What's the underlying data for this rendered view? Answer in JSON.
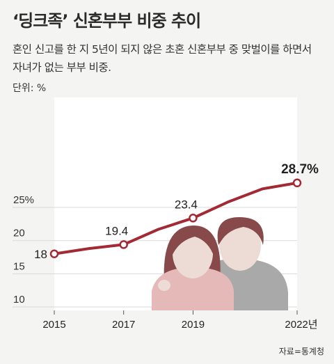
{
  "title": "‘딩크족’ 신혼부부 비중 추이",
  "subtitle": "혼인 신고를 한 지 5년이 되지 않은 초혼 신혼부부 중 맞벌이를 하면서 자녀가 없는 부부 비중.",
  "unit_label": "단위: %",
  "source": "자료=통계청",
  "colors": {
    "line": "#a32a35",
    "grid": "#d9d9d9",
    "plot_bg": "#ffffff",
    "page_bg": "#f4f4f2",
    "person_skin": "#eddcd6",
    "woman_hair": "#88494a",
    "woman_top": "#e4b9b7",
    "man_hair": "#88494a",
    "man_top": "#a9a9a9"
  },
  "chart_data": {
    "type": "line",
    "x": [
      "2015",
      "2017",
      "2019",
      "2022년"
    ],
    "x_values": [
      2015,
      2016,
      2017,
      2018,
      2019,
      2020,
      2021,
      2022
    ],
    "values": [
      18.0,
      18.8,
      19.4,
      21.7,
      23.4,
      25.8,
      27.8,
      28.7
    ],
    "labeled_points": [
      {
        "x": 2015,
        "y": 18.0,
        "label": "18"
      },
      {
        "x": 2017,
        "y": 19.4,
        "label": "19.4"
      },
      {
        "x": 2019,
        "y": 23.4,
        "label": "23.4"
      },
      {
        "x": 2022,
        "y": 28.7,
        "label": "28.7%"
      }
    ],
    "y_ticks": [
      {
        "value": 25,
        "label": "25%"
      },
      {
        "value": 20,
        "label": "20"
      },
      {
        "value": 15,
        "label": "15"
      },
      {
        "value": 10,
        "label": "10"
      }
    ],
    "x_ticks": [
      {
        "value": 2015,
        "label": "2015"
      },
      {
        "value": 2017,
        "label": "2017"
      },
      {
        "value": 2019,
        "label": "2019"
      },
      {
        "value": 2022,
        "label": "2022년"
      }
    ],
    "ylim": [
      10,
      30
    ],
    "grid": true
  }
}
